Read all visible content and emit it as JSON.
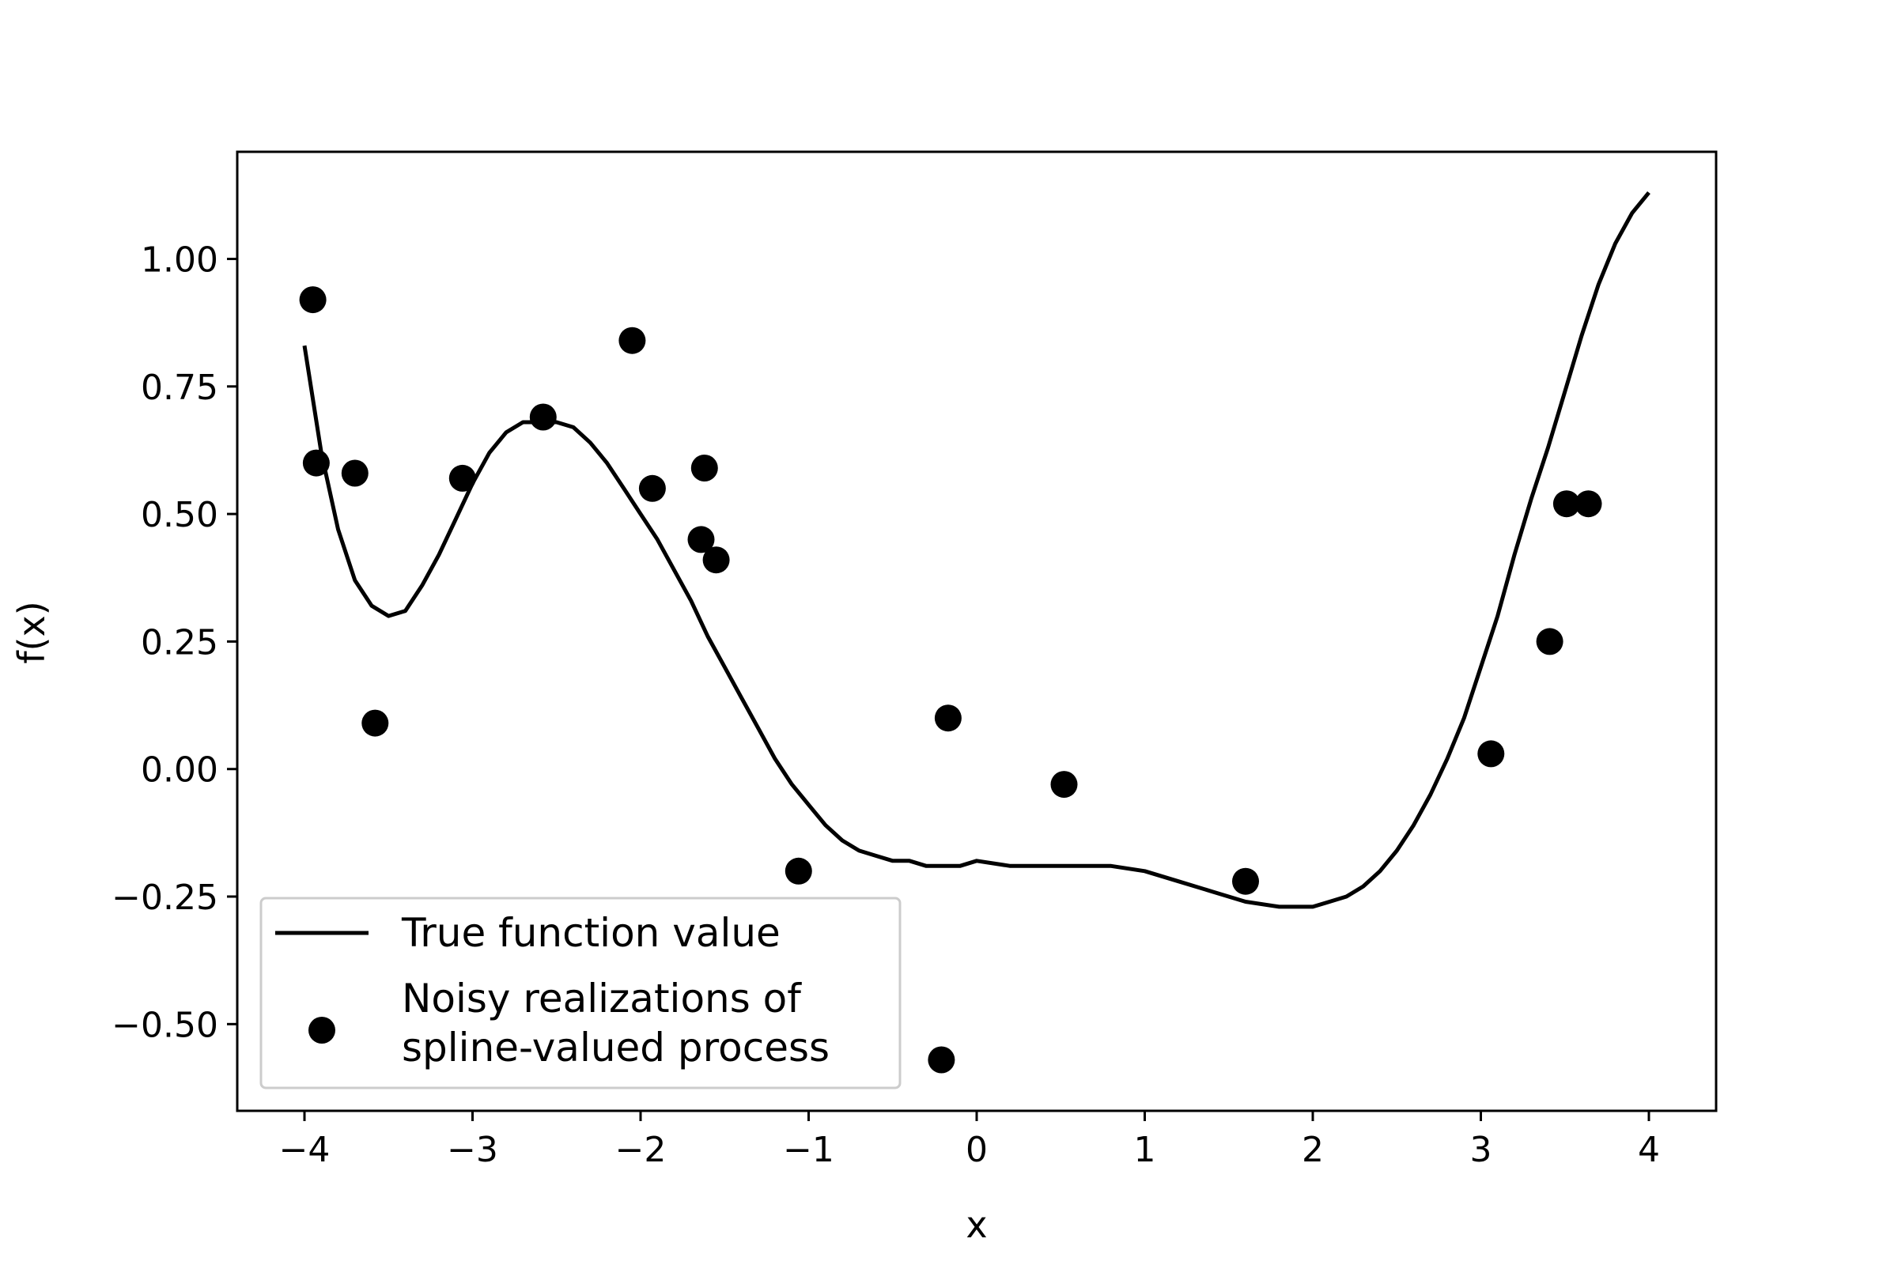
{
  "chart_data": {
    "type": "scatter",
    "title": "",
    "xlabel": "x",
    "ylabel": "f(x)",
    "xlim": [
      -4.4,
      4.4
    ],
    "ylim": [
      -0.67,
      1.21
    ],
    "xticks": [
      -4,
      -3,
      -2,
      -1,
      0,
      1,
      2,
      3,
      4
    ],
    "xtick_labels": [
      "−4",
      "−3",
      "−2",
      "−1",
      "0",
      "1",
      "2",
      "3",
      "4"
    ],
    "yticks": [
      -0.5,
      -0.25,
      0.0,
      0.25,
      0.5,
      0.75,
      1.0
    ],
    "ytick_labels": [
      "−0.50",
      "−0.25",
      "0.00",
      "0.25",
      "0.50",
      "0.75",
      "1.00"
    ],
    "grid": false,
    "legend_position": "lower-left",
    "color": "#000000",
    "series": [
      {
        "name": "True function value",
        "kind": "line",
        "x": [
          -4.0,
          -3.9,
          -3.8,
          -3.7,
          -3.6,
          -3.5,
          -3.4,
          -3.3,
          -3.2,
          -3.1,
          -3.0,
          -2.9,
          -2.8,
          -2.7,
          -2.6,
          -2.5,
          -2.4,
          -2.3,
          -2.2,
          -2.1,
          -2.0,
          -1.9,
          -1.8,
          -1.7,
          -1.6,
          -1.5,
          -1.4,
          -1.3,
          -1.2,
          -1.1,
          -1.0,
          -0.9,
          -0.8,
          -0.7,
          -0.6,
          -0.5,
          -0.4,
          -0.3,
          -0.2,
          -0.1,
          0.0,
          0.2,
          0.4,
          0.6,
          0.8,
          1.0,
          1.2,
          1.4,
          1.6,
          1.8,
          1.9,
          2.0,
          2.1,
          2.2,
          2.3,
          2.4,
          2.5,
          2.6,
          2.7,
          2.8,
          2.9,
          3.0,
          3.1,
          3.2,
          3.3,
          3.4,
          3.5,
          3.6,
          3.7,
          3.8,
          3.9,
          4.0
        ],
        "y": [
          0.83,
          0.62,
          0.47,
          0.37,
          0.32,
          0.3,
          0.31,
          0.36,
          0.42,
          0.49,
          0.56,
          0.62,
          0.66,
          0.68,
          0.68,
          0.68,
          0.67,
          0.64,
          0.6,
          0.55,
          0.5,
          0.45,
          0.39,
          0.33,
          0.26,
          0.2,
          0.14,
          0.08,
          0.02,
          -0.03,
          -0.07,
          -0.11,
          -0.14,
          -0.16,
          -0.17,
          -0.18,
          -0.18,
          -0.19,
          -0.19,
          -0.19,
          -0.18,
          -0.19,
          -0.19,
          -0.19,
          -0.19,
          -0.2,
          -0.22,
          -0.24,
          -0.26,
          -0.27,
          -0.27,
          -0.27,
          -0.26,
          -0.25,
          -0.23,
          -0.2,
          -0.16,
          -0.11,
          -0.05,
          0.02,
          0.1,
          0.2,
          0.3,
          0.42,
          0.53,
          0.63,
          0.74,
          0.85,
          0.95,
          1.03,
          1.09,
          1.13
        ]
      },
      {
        "name": "Noisy realizations of\nspline-valued process",
        "name_lines": [
          "Noisy realizations of",
          "spline-valued process"
        ],
        "kind": "scatter",
        "x": [
          -3.95,
          -3.93,
          -3.7,
          -3.58,
          -3.06,
          -2.58,
          -2.05,
          -1.93,
          -1.62,
          -1.64,
          -1.55,
          -1.06,
          -0.17,
          -0.21,
          0.52,
          1.6,
          3.06,
          3.41,
          3.51,
          3.64
        ],
        "y": [
          0.92,
          0.6,
          0.58,
          0.09,
          0.57,
          0.69,
          0.84,
          0.55,
          0.59,
          0.45,
          0.41,
          -0.2,
          0.1,
          -0.57,
          -0.03,
          -0.22,
          0.03,
          0.25,
          0.52,
          0.52
        ]
      }
    ]
  }
}
